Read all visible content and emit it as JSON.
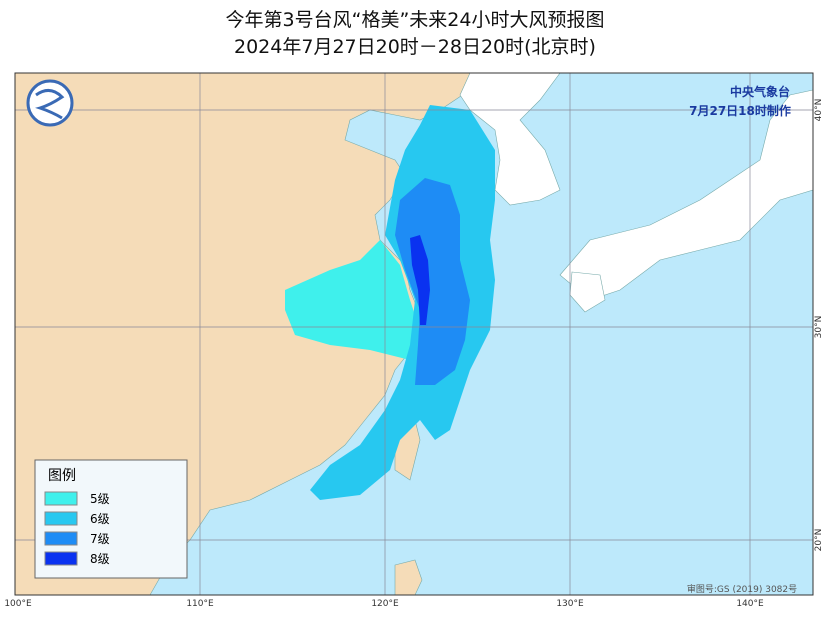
{
  "header": {
    "title": "今年第3号台风“格美”未来24小时大风预报图",
    "subtitle": "2024年7月27日20时－28日20时(北京时)"
  },
  "agency": {
    "name": "中央气象台",
    "issued": "7月27日18时制作"
  },
  "legend": {
    "title": "图例",
    "items": [
      {
        "label": "5级",
        "color": "#3ff0ec"
      },
      {
        "label": "6级",
        "color": "#27c8f0"
      },
      {
        "label": "7级",
        "color": "#1e8cf5"
      },
      {
        "label": "8级",
        "color": "#0a32f0"
      }
    ]
  },
  "axes": {
    "bottom": [
      "100°E",
      "110°E",
      "120°E",
      "130°E",
      "140°E"
    ],
    "right": [
      "40°N",
      "30°N",
      "20°N"
    ]
  },
  "credit": "审图号:GS (2019) 3082号"
}
